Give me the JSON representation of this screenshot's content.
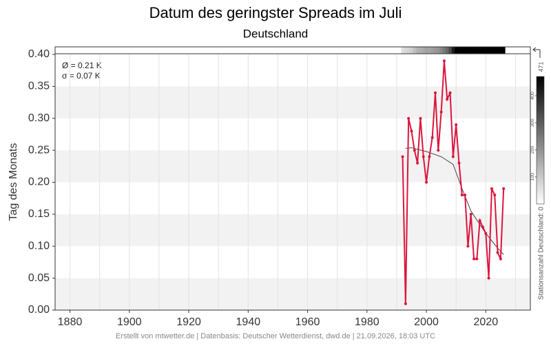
{
  "chart_data": {
    "type": "line",
    "title": "Datum des geringster Spreads im Juli",
    "subtitle": "Deutschland",
    "y_label": "Tag des Monats",
    "footer": "Erstellt von mtwetter.de | Datenbasis: Deutscher Wetterdienst, dwd.de | 21.09.2026, 18:03 UTC",
    "annotations": [
      "Ø = 0.21 K",
      "σ = 0.07 K"
    ],
    "x": [
      1992,
      1993,
      1994,
      1995,
      1996,
      1997,
      1998,
      1999,
      2000,
      2001,
      2002,
      2003,
      2004,
      2005,
      2006,
      2007,
      2008,
      2009,
      2010,
      2011,
      2012,
      2013,
      2014,
      2015,
      2016,
      2017,
      2018,
      2019,
      2020,
      2021,
      2022,
      2023,
      2024,
      2025,
      2026
    ],
    "values": [
      0.24,
      0.01,
      0.3,
      0.28,
      0.25,
      0.23,
      0.3,
      0.24,
      0.2,
      0.24,
      0.27,
      0.34,
      0.25,
      0.31,
      0.39,
      0.33,
      0.34,
      0.24,
      0.29,
      0.23,
      0.18,
      0.18,
      0.1,
      0.15,
      0.08,
      0.08,
      0.14,
      0.13,
      0.12,
      0.05,
      0.19,
      0.18,
      0.09,
      0.08,
      0.19
    ],
    "color": "#dc143c",
    "trend_x": [
      1993,
      1995,
      2000,
      2005,
      2009,
      2012,
      2015,
      2020,
      2024,
      2026
    ],
    "trend_values": [
      0.253,
      0.254,
      0.248,
      0.24,
      0.228,
      0.19,
      0.155,
      0.12,
      0.097,
      0.087
    ],
    "trend_color": "#333333",
    "xlim": [
      1875,
      2035
    ],
    "xticks": [
      1880,
      1900,
      1920,
      1940,
      1960,
      1980,
      2000,
      2020
    ],
    "xgrid": [
      1880,
      1890,
      1900,
      1910,
      1920,
      1930,
      1940,
      1950,
      1960,
      1970,
      1980,
      1990,
      2000,
      2010,
      2020,
      2030
    ],
    "ylim": [
      0,
      0.4
    ],
    "yticks": [
      {
        "value": 0,
        "label": "0.00"
      },
      {
        "value": 0.05,
        "label": "0.05"
      },
      {
        "value": 0.1,
        "label": "0.10"
      },
      {
        "value": 0.15,
        "label": "0.15"
      },
      {
        "value": 0.2,
        "label": "0.20"
      },
      {
        "value": 0.25,
        "label": "0.25"
      },
      {
        "value": 0.3,
        "label": "0.30"
      },
      {
        "value": 0.35,
        "label": "0.35"
      },
      {
        "value": 0.4,
        "label": "0.40"
      }
    ],
    "station_counts": [
      60,
      70,
      80,
      90,
      120,
      140,
      150,
      160,
      170,
      170,
      180,
      190,
      200,
      220,
      250,
      280,
      330,
      420,
      471,
      471,
      471,
      471,
      471,
      471,
      471,
      471,
      471,
      471,
      471,
      471,
      471,
      471,
      471,
      471,
      471
    ],
    "colorbar": {
      "label": "Stationsanzahl Deutschland: 0",
      "max": 471,
      "ticks": [
        100,
        200,
        300,
        400
      ]
    }
  }
}
